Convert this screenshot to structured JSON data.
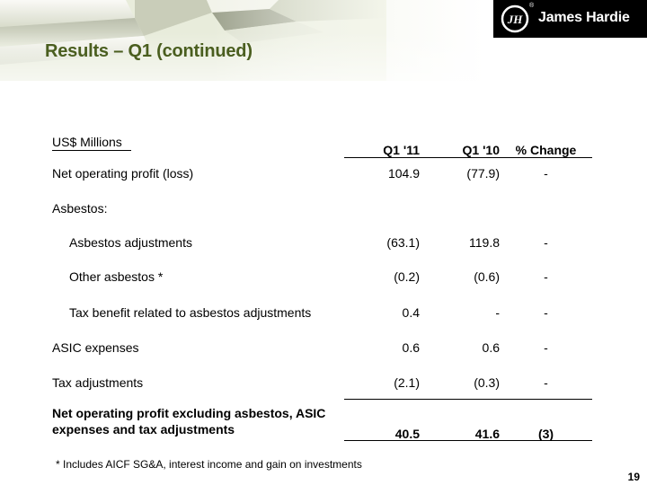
{
  "slide": {
    "title": "Results – Q1 (continued)",
    "page_number": "19"
  },
  "logo": {
    "monogram": "JH",
    "registered_mark": "®",
    "text": "James Hardie"
  },
  "table": {
    "units_label": "US$ Millions",
    "columns": [
      "Q1 '11",
      "Q1 '10",
      "% Change"
    ],
    "rows": [
      {
        "label": "Net operating profit (loss)",
        "q1_11": "104.9",
        "q1_10": "(77.9)",
        "change": "-"
      },
      {
        "label": "Asbestos:",
        "q1_11": "",
        "q1_10": "",
        "change": ""
      },
      {
        "label": "Asbestos adjustments",
        "q1_11": "(63.1)",
        "q1_10": "119.8",
        "change": "-"
      },
      {
        "label": "Other asbestos *",
        "q1_11": "(0.2)",
        "q1_10": "(0.6)",
        "change": "-"
      },
      {
        "label": "Tax benefit related to asbestos adjustments",
        "q1_11": "0.4",
        "q1_10": "-",
        "change": "-"
      },
      {
        "label": "ASIC expenses",
        "q1_11": "0.6",
        "q1_10": "0.6",
        "change": "-"
      },
      {
        "label": "Tax adjustments",
        "q1_11": "(2.1)",
        "q1_10": "(0.3)",
        "change": "-"
      }
    ],
    "total": {
      "label_line1": "Net operating profit excluding asbestos, ASIC",
      "label_line2": "expenses and tax adjustments",
      "q1_11": "40.5",
      "q1_10": "41.6",
      "change": "(3)"
    }
  },
  "footnote": "* Includes AICF SG&A, interest income and gain on investments"
}
